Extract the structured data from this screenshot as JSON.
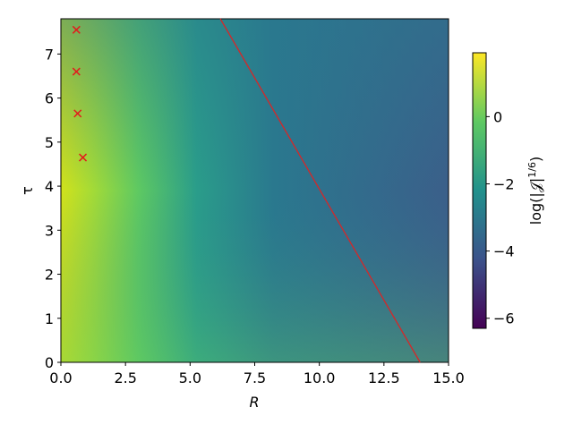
{
  "chart_data": {
    "type": "heatmap",
    "xlabel": "R",
    "ylabel": "τ",
    "xlim": [
      0,
      15
    ],
    "ylim": [
      0,
      7.8
    ],
    "xticks": [
      {
        "value": 0,
        "label": "0.0"
      },
      {
        "value": 2.5,
        "label": "2.5"
      },
      {
        "value": 5,
        "label": "5.0"
      },
      {
        "value": 7.5,
        "label": "7.5"
      },
      {
        "value": 10,
        "label": "10.0"
      },
      {
        "value": 12.5,
        "label": "12.5"
      },
      {
        "value": 15,
        "label": "15.0"
      }
    ],
    "yticks": [
      0,
      1,
      2,
      3,
      4,
      5,
      6,
      7
    ],
    "colorbar": {
      "label": {
        "base": "log(|𝒥|",
        "sup": "1/6",
        "close": ")"
      },
      "lim": [
        -6.3,
        1.9
      ],
      "ticks": [
        {
          "value": -6,
          "label": "−6"
        },
        {
          "value": -4,
          "label": "−4"
        },
        {
          "value": -2,
          "label": "−2"
        },
        0
      ]
    },
    "line": {
      "color": "#d62728",
      "x": [
        6.17,
        13.9
      ],
      "y": [
        7.8,
        0
      ]
    },
    "markers": {
      "color": "#e31a1c",
      "x": [
        0.6,
        0.6,
        0.65,
        0.85
      ],
      "y": [
        7.55,
        6.6,
        5.65,
        4.65
      ]
    }
  }
}
